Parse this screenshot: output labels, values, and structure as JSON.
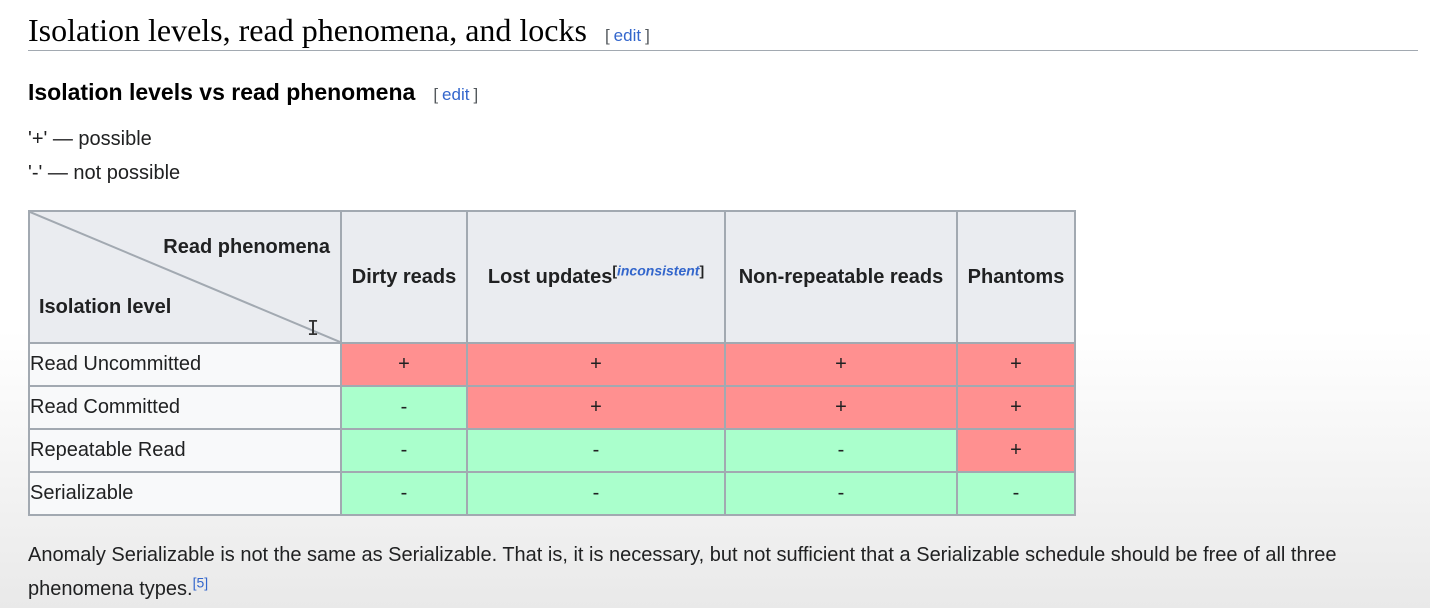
{
  "section": {
    "title": "Isolation levels, read phenomena, and locks",
    "edit_open": "[",
    "edit_label": "edit",
    "edit_close": "]"
  },
  "subsection": {
    "title": "Isolation levels vs read phenomena",
    "edit_open": "[",
    "edit_label": "edit",
    "edit_close": "]"
  },
  "legend": {
    "possible": "'+' — possible",
    "not_possible": "'-' — not possible"
  },
  "table": {
    "corner_top": "Read phenomena",
    "corner_bottom": "Isolation level",
    "columns": [
      {
        "label": "Dirty reads",
        "sup_open": "",
        "sup_link": "",
        "sup_close": ""
      },
      {
        "label": "Lost updates",
        "sup_open": "[",
        "sup_link": "inconsistent",
        "sup_close": "]"
      },
      {
        "label": "Non-repeatable reads",
        "sup_open": "",
        "sup_link": "",
        "sup_close": ""
      },
      {
        "label": "Phantoms",
        "sup_open": "",
        "sup_link": "",
        "sup_close": ""
      }
    ],
    "rows": [
      {
        "level": "Read Uncommitted",
        "cells": [
          "+",
          "+",
          "+",
          "+"
        ]
      },
      {
        "level": "Read Committed",
        "cells": [
          "-",
          "+",
          "+",
          "+"
        ]
      },
      {
        "level": "Repeatable Read",
        "cells": [
          "-",
          "-",
          "-",
          "+"
        ]
      },
      {
        "level": "Serializable",
        "cells": [
          "-",
          "-",
          "-",
          "-"
        ]
      }
    ],
    "colors": {
      "possible": "#ff9090",
      "not_possible": "#aaffcc",
      "header": "#eaecf0",
      "border": "#a2a9b1"
    }
  },
  "footnote": {
    "text": "Anomaly Serializable is not the same as Serializable. That is, it is necessary, but not sufficient that a Serializable schedule should be free of all three phenomena types.",
    "ref": "[5]"
  },
  "cursor_icon": "text-cursor-icon"
}
